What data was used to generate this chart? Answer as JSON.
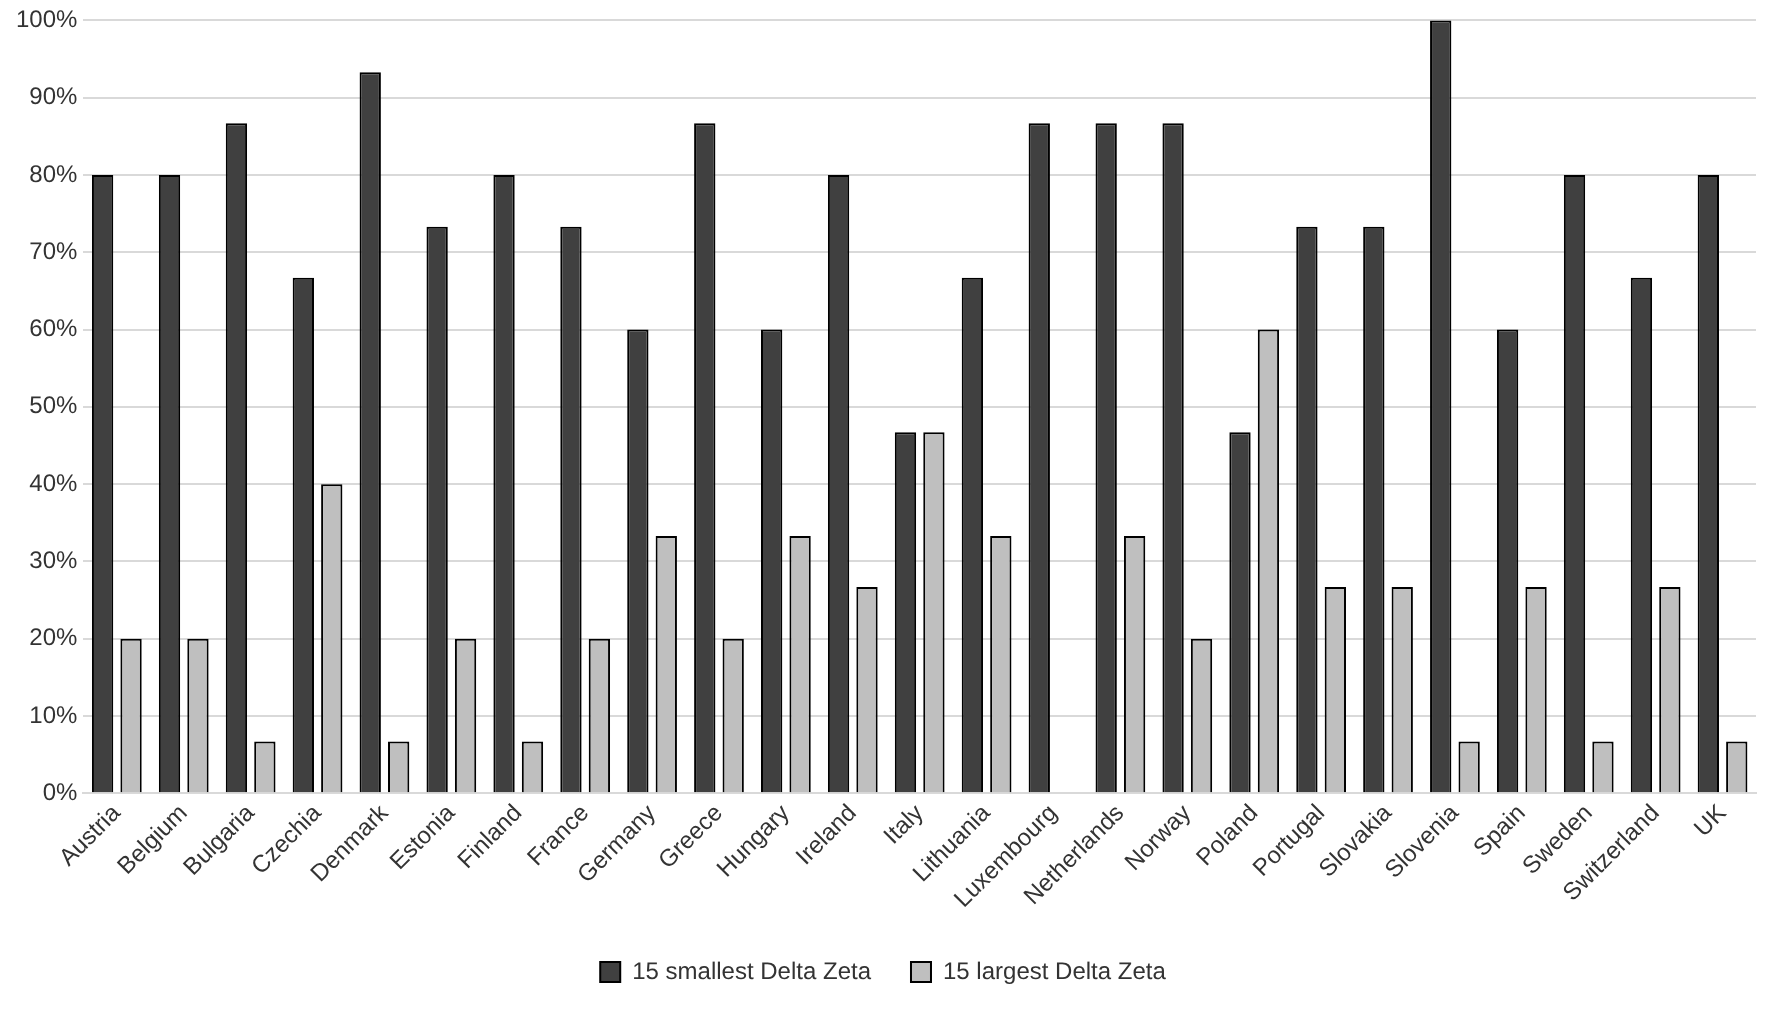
{
  "chart_data": {
    "type": "bar",
    "categories": [
      "Austria",
      "Belgium",
      "Bulgaria",
      "Czechia",
      "Denmark",
      "Estonia",
      "Finland",
      "France",
      "Germany",
      "Greece",
      "Hungary",
      "Ireland",
      "Italy",
      "Lithuania",
      "Luxembourg",
      "Netherlands",
      "Norway",
      "Poland",
      "Portugal",
      "Slovakia",
      "Slovenia",
      "Spain",
      "Sweden",
      "Switzerland",
      "UK"
    ],
    "series": [
      {
        "name": "15 smallest Delta Zeta",
        "color": "#404040",
        "values": [
          80,
          80,
          86.7,
          66.7,
          93.3,
          73.3,
          80,
          73.3,
          60,
          86.7,
          60,
          80,
          46.7,
          66.7,
          86.7,
          86.7,
          86.7,
          46.7,
          73.3,
          73.3,
          100,
          60,
          80,
          66.7,
          80
        ]
      },
      {
        "name": "15 largest Delta Zeta",
        "color": "#bfbfbf",
        "values": [
          20,
          20,
          6.7,
          40,
          6.7,
          20,
          6.7,
          20,
          33.3,
          20,
          33.3,
          26.7,
          46.7,
          33.3,
          0,
          33.3,
          20,
          60,
          26.7,
          26.7,
          6.7,
          26.7,
          6.7,
          26.7,
          6.7
        ]
      }
    ],
    "ylim": [
      0,
      100
    ],
    "yticks": [
      {
        "value": 0,
        "label": "0%"
      },
      {
        "value": 10,
        "label": "10%"
      },
      {
        "value": 20,
        "label": "20%"
      },
      {
        "value": 30,
        "label": "30%"
      },
      {
        "value": 40,
        "label": "40%"
      },
      {
        "value": 50,
        "label": "50%"
      },
      {
        "value": 60,
        "label": "60%"
      },
      {
        "value": 70,
        "label": "70%"
      },
      {
        "value": 80,
        "label": "80%"
      },
      {
        "value": 90,
        "label": "90%"
      },
      {
        "value": 100,
        "label": "100%"
      }
    ],
    "grid": "y",
    "legend": "bottom"
  }
}
